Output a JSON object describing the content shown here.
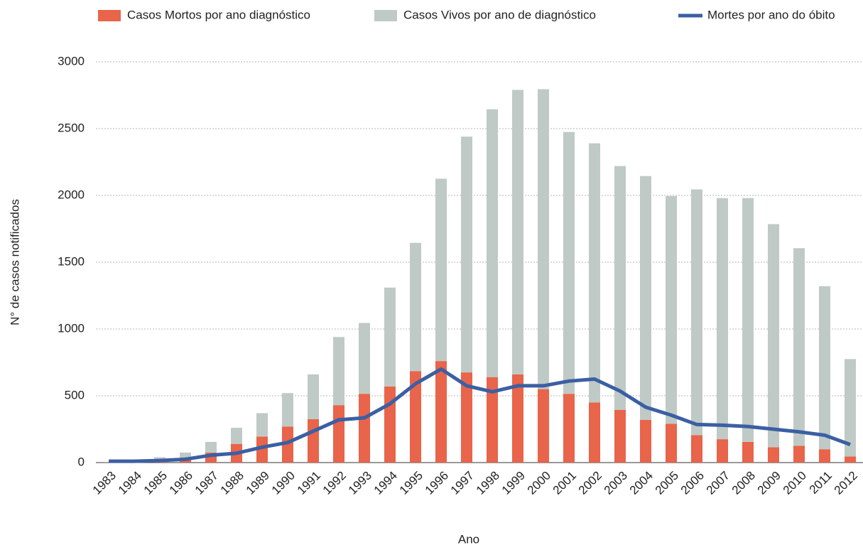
{
  "chart_data": {
    "type": "bar_line",
    "categories": [
      "1983",
      "1984",
      "1985",
      "1986",
      "1987",
      "1988",
      "1989",
      "1990",
      "1991",
      "1992",
      "1993",
      "1994",
      "1995",
      "1996",
      "1997",
      "1998",
      "1999",
      "2000",
      "2001",
      "2002",
      "2003",
      "2004",
      "2005",
      "2006",
      "2007",
      "2008",
      "2009",
      "2010",
      "2011",
      "2012"
    ],
    "series": [
      {
        "name": "Casos Mortos por ano diagnóstico",
        "color": "#e8644a",
        "kind": "bar",
        "values": [
          3,
          5,
          10,
          20,
          75,
          140,
          195,
          270,
          325,
          430,
          515,
          570,
          685,
          760,
          675,
          640,
          660,
          550,
          515,
          450,
          395,
          320,
          290,
          205,
          175,
          155,
          115,
          125,
          100,
          45
        ]
      },
      {
        "name": "Casos Vivos por ano de diagnóstico",
        "color": "#bfcac6",
        "kind": "bar",
        "values": [
          2,
          5,
          30,
          55,
          80,
          120,
          175,
          250,
          335,
          510,
          530,
          740,
          960,
          1365,
          1765,
          2005,
          2130,
          2245,
          1960,
          1940,
          1825,
          1825,
          1705,
          1840,
          1805,
          1825,
          1670,
          1480,
          1220,
          730
        ]
      },
      {
        "name": "Mortes por ano do óbito",
        "color": "#3b5fa3",
        "kind": "line",
        "values": [
          10,
          10,
          15,
          25,
          55,
          70,
          115,
          150,
          235,
          320,
          335,
          440,
          590,
          700,
          575,
          530,
          575,
          575,
          610,
          625,
          535,
          415,
          355,
          285,
          280,
          270,
          250,
          230,
          205,
          135
        ]
      }
    ],
    "xlabel": "Ano",
    "ylabel": "N° de casos notificados",
    "ylim": [
      0,
      3000
    ],
    "yticks": [
      0,
      500,
      1000,
      1500,
      2000,
      2500,
      3000
    ],
    "grid": true
  }
}
